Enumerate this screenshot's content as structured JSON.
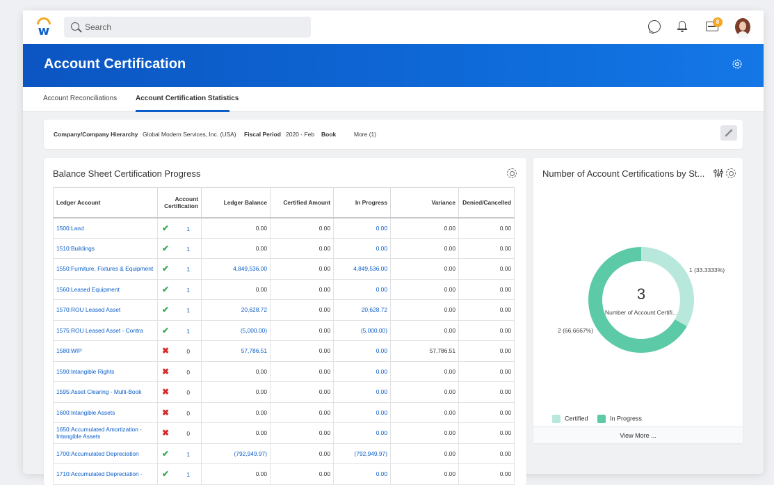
{
  "header": {
    "search_placeholder": "Search",
    "inbox_badge": "8"
  },
  "banner": {
    "title": "Account Certification"
  },
  "tabs": [
    {
      "label": "Account Reconciliations",
      "active": false
    },
    {
      "label": "Account Certification Statistics",
      "active": true
    }
  ],
  "filters": {
    "company_label": "Company/Company Hierarchy",
    "company_value": "Global Modern Services, Inc. (USA)",
    "period_label": "Fiscal Period",
    "period_value": "2020 - Feb",
    "book_label": "Book",
    "more": "More (1)"
  },
  "progress_panel": {
    "title": "Balance Sheet Certification Progress",
    "columns": [
      "Ledger Account",
      "Account Certification",
      "Ledger Balance",
      "Certified Amount",
      "In Progress",
      "Variance",
      "Denied/Cancelled"
    ],
    "rows": [
      {
        "account": "1500:Land",
        "status": "check",
        "count": "1",
        "ledger_balance": "0.00",
        "certified": "0.00",
        "in_progress": "0.00",
        "variance": "0.00",
        "denied": "0.00"
      },
      {
        "account": "1510:Buildings",
        "status": "check",
        "count": "1",
        "ledger_balance": "0.00",
        "certified": "0.00",
        "in_progress": "0.00",
        "variance": "0.00",
        "denied": "0.00"
      },
      {
        "account": "1550:Furniture, Fixtures & Equipment",
        "status": "check",
        "count": "1",
        "ledger_balance": "4,849,536.00",
        "certified": "0.00",
        "in_progress": "4,849,536.00",
        "variance": "0.00",
        "denied": "0.00"
      },
      {
        "account": "1560:Leased Equipment",
        "status": "check",
        "count": "1",
        "ledger_balance": "0.00",
        "certified": "0.00",
        "in_progress": "0.00",
        "variance": "0.00",
        "denied": "0.00"
      },
      {
        "account": "1570:ROU Leased Asset",
        "status": "check",
        "count": "1",
        "ledger_balance": "20,628.72",
        "certified": "0.00",
        "in_progress": "20,628.72",
        "variance": "0.00",
        "denied": "0.00"
      },
      {
        "account": "1575:ROU Leased Asset - Contra",
        "status": "check",
        "count": "1",
        "ledger_balance": "(5,000.00)",
        "certified": "0.00",
        "in_progress": "(5,000.00)",
        "variance": "0.00",
        "denied": "0.00"
      },
      {
        "account": "1580:WIP",
        "status": "x",
        "count": "0",
        "ledger_balance": "57,786.51",
        "certified": "0.00",
        "in_progress": "0.00",
        "variance": "57,786.51",
        "denied": "0.00"
      },
      {
        "account": "1590:Intangible Rights",
        "status": "x",
        "count": "0",
        "ledger_balance": "0.00",
        "certified": "0.00",
        "in_progress": "0.00",
        "variance": "0.00",
        "denied": "0.00"
      },
      {
        "account": "1595:Asset Clearing - Multi-Book",
        "status": "x",
        "count": "0",
        "ledger_balance": "0.00",
        "certified": "0.00",
        "in_progress": "0.00",
        "variance": "0.00",
        "denied": "0.00"
      },
      {
        "account": "1600:Intangible Assets",
        "status": "x",
        "count": "0",
        "ledger_balance": "0.00",
        "certified": "0.00",
        "in_progress": "0.00",
        "variance": "0.00",
        "denied": "0.00"
      },
      {
        "account": "1650:Accumulated Amortization - Intangible Assets",
        "status": "x",
        "count": "0",
        "ledger_balance": "0.00",
        "certified": "0.00",
        "in_progress": "0.00",
        "variance": "0.00",
        "denied": "0.00"
      },
      {
        "account": "1700:Accumulated Depreciation",
        "status": "check",
        "count": "1",
        "ledger_balance": "(792,949.97)",
        "certified": "0.00",
        "in_progress": "(792,949.97)",
        "variance": "0.00",
        "denied": "0.00"
      },
      {
        "account": "1710:Accumulated Depreciation -",
        "status": "check",
        "count": "1",
        "ledger_balance": "0.00",
        "certified": "0.00",
        "in_progress": "0.00",
        "variance": "0.00",
        "denied": "0.00"
      }
    ]
  },
  "chart_panel": {
    "title": "Number of Account Certifications by St...",
    "center_value": "3",
    "center_label": "Number of Account Certifi...",
    "view_more": "View More ...",
    "colors": {
      "certified": "#b8e8dc",
      "in_progress": "#5cc9a7",
      "link": "#0b5ec9",
      "check": "#3aa856",
      "cross": "#d62b2b"
    }
  },
  "chart_data": {
    "type": "pie",
    "categories": [
      "Certified",
      "In Progress"
    ],
    "values": [
      1,
      2
    ],
    "data_labels": [
      "1 (33.3333%)",
      "2 (66.6667%)"
    ],
    "legend_position": "bottom"
  }
}
